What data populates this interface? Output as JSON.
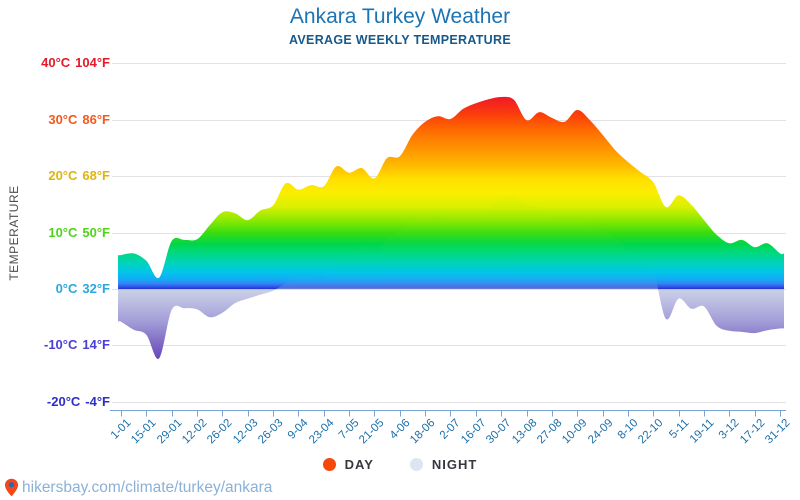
{
  "header": {
    "title": "Ankara Turkey Weather",
    "subtitle": "AVERAGE WEEKLY TEMPERATURE"
  },
  "y_axis": {
    "label": "TEMPERATURE",
    "ticks": [
      {
        "c": "40°C",
        "f": "104°F",
        "temp": 40,
        "color": "#e6192b"
      },
      {
        "c": "30°C",
        "f": "86°F",
        "temp": 30,
        "color": "#f4581c"
      },
      {
        "c": "20°C",
        "f": "68°F",
        "temp": 20,
        "color": "#dfb40e"
      },
      {
        "c": "10°C",
        "f": "50°F",
        "temp": 10,
        "color": "#4fd41a"
      },
      {
        "c": "0°C",
        "f": "32°F",
        "temp": 0,
        "color": "#29a8e0"
      },
      {
        "c": "-10°C",
        "f": "14°F",
        "temp": -10,
        "color": "#4a3dd8"
      },
      {
        "c": "-20°C",
        "f": "-4°F",
        "temp": -20,
        "color": "#2d2dc8"
      }
    ]
  },
  "x_axis": {
    "labels": [
      "1-01",
      "15-01",
      "29-01",
      "12-02",
      "26-02",
      "12-03",
      "26-03",
      "9-04",
      "23-04",
      "7-05",
      "21-05",
      "4-06",
      "18-06",
      "2-07",
      "16-07",
      "30-07",
      "13-08",
      "27-08",
      "10-09",
      "24-09",
      "8-10",
      "22-10",
      "5-11",
      "19-11",
      "3-12",
      "17-12",
      "31-12"
    ]
  },
  "legend": {
    "items": [
      {
        "label": "DAY",
        "color": "#f4490b"
      },
      {
        "label": "NIGHT",
        "color": "#dce5f2"
      }
    ]
  },
  "footer": {
    "url": "hikersbay.com/climate/turkey/ankara"
  },
  "chart_data": {
    "type": "area",
    "title": "Ankara Turkey Weather",
    "subtitle": "AVERAGE WEEKLY TEMPERATURE",
    "ylabel": "TEMPERATURE",
    "ylim": [
      -20,
      40
    ],
    "y_tick_temps_c": [
      40,
      30,
      20,
      10,
      0,
      -10,
      -20
    ],
    "grid": true,
    "legend_position": "bottom",
    "x": [
      "1-01",
      "8-01",
      "15-01",
      "22-01",
      "29-01",
      "5-02",
      "12-02",
      "19-02",
      "26-02",
      "5-03",
      "12-03",
      "19-03",
      "26-03",
      "2-04",
      "9-04",
      "16-04",
      "23-04",
      "30-04",
      "7-05",
      "14-05",
      "21-05",
      "28-05",
      "4-06",
      "11-06",
      "18-06",
      "25-06",
      "2-07",
      "9-07",
      "16-07",
      "23-07",
      "30-07",
      "6-08",
      "13-08",
      "20-08",
      "27-08",
      "3-09",
      "10-09",
      "17-09",
      "24-09",
      "1-10",
      "8-10",
      "15-10",
      "22-10",
      "29-10",
      "5-11",
      "12-11",
      "19-11",
      "26-11",
      "3-12",
      "10-12",
      "17-12",
      "24-12",
      "31-12"
    ],
    "series": [
      {
        "name": "DAY",
        "unit": "°C",
        "values": [
          6.0,
          6.3,
          5.0,
          2.0,
          8.5,
          8.7,
          8.8,
          11.3,
          13.6,
          13.4,
          12.2,
          13.9,
          14.8,
          18.7,
          17.6,
          18.4,
          18.2,
          21.7,
          20.6,
          21.4,
          19.6,
          23.2,
          23.5,
          27.3,
          29.6,
          30.6,
          30.1,
          31.9,
          32.9,
          33.6,
          34.0,
          33.5,
          29.9,
          31.3,
          30.3,
          29.6,
          31.7,
          29.9,
          27.3,
          24.6,
          22.5,
          20.7,
          18.9,
          14.5,
          16.6,
          14.9,
          12.2,
          9.6,
          8.1,
          8.7,
          7.4,
          8.1,
          6.3
        ]
      },
      {
        "name": "NIGHT",
        "unit": "°C",
        "values": [
          -5.8,
          -7.2,
          -8.1,
          -12.3,
          -3.7,
          -3.4,
          -3.6,
          -5.0,
          -4.2,
          -2.5,
          -1.7,
          -1.0,
          -0.3,
          1.0,
          2.2,
          2.1,
          1.8,
          5.3,
          6.3,
          7.5,
          6.4,
          8.7,
          10.5,
          12.4,
          13.1,
          12.6,
          12.9,
          13.1,
          12.9,
          14.3,
          15.8,
          16.6,
          14.9,
          14.4,
          12.6,
          12.3,
          12.1,
          11.4,
          10.3,
          9.0,
          7.0,
          5.8,
          3.4,
          -5.3,
          -1.7,
          -3.5,
          -3.1,
          -6.5,
          -7.4,
          -7.6,
          -7.8,
          -7.3,
          -7.0
        ]
      }
    ],
    "day_gradient": [
      {
        "t": 40,
        "color": "#e00920"
      },
      {
        "t": 34,
        "color": "#f01828"
      },
      {
        "t": 31,
        "color": "#fa3c0c"
      },
      {
        "t": 28,
        "color": "#ff6c00"
      },
      {
        "t": 25,
        "color": "#ff9200"
      },
      {
        "t": 22,
        "color": "#ffb800"
      },
      {
        "t": 19.5,
        "color": "#ffdf00"
      },
      {
        "t": 17,
        "color": "#fbee00"
      },
      {
        "t": 14.5,
        "color": "#d8f000"
      },
      {
        "t": 12,
        "color": "#86e800"
      },
      {
        "t": 10,
        "color": "#3add0e"
      },
      {
        "t": 8,
        "color": "#00d647"
      },
      {
        "t": 6.5,
        "color": "#00d87c"
      },
      {
        "t": 4.8,
        "color": "#00d4b2"
      },
      {
        "t": 3.2,
        "color": "#00c8e4"
      },
      {
        "t": 1.8,
        "color": "#11aef6"
      },
      {
        "t": 1.0,
        "color": "#3388f4"
      },
      {
        "t": 0.4,
        "color": "#2f55ea"
      },
      {
        "t": 0,
        "color": "#2433cf"
      }
    ],
    "night_gradient": [
      {
        "t": 18,
        "color": "#f0ee00",
        "opacity": 0.2
      },
      {
        "t": 13,
        "color": "#b0ec00",
        "opacity": 0.24
      },
      {
        "t": 9,
        "color": "#2cdc2c",
        "opacity": 0.24
      },
      {
        "t": 6,
        "color": "#00d88c",
        "opacity": 0.26
      },
      {
        "t": 3,
        "color": "#00c8e0",
        "opacity": 0.3
      },
      {
        "t": 1,
        "color": "#3e9af2",
        "opacity": 0.35
      },
      {
        "t": 0.2,
        "color": "#7f93d0",
        "opacity": 0.5
      },
      {
        "t": -0.3,
        "color": "#c9cfe6",
        "opacity": 1
      },
      {
        "t": -3,
        "color": "#b7b7e0",
        "opacity": 1
      },
      {
        "t": -6,
        "color": "#a09ad6",
        "opacity": 1
      },
      {
        "t": -9,
        "color": "#8471c8",
        "opacity": 1
      },
      {
        "t": -12,
        "color": "#6a4cba",
        "opacity": 1
      },
      {
        "t": -15,
        "color": "#5636aa",
        "opacity": 1
      }
    ],
    "axis_color": "#7aa2d8",
    "grid_color": "#e2e2e6"
  }
}
